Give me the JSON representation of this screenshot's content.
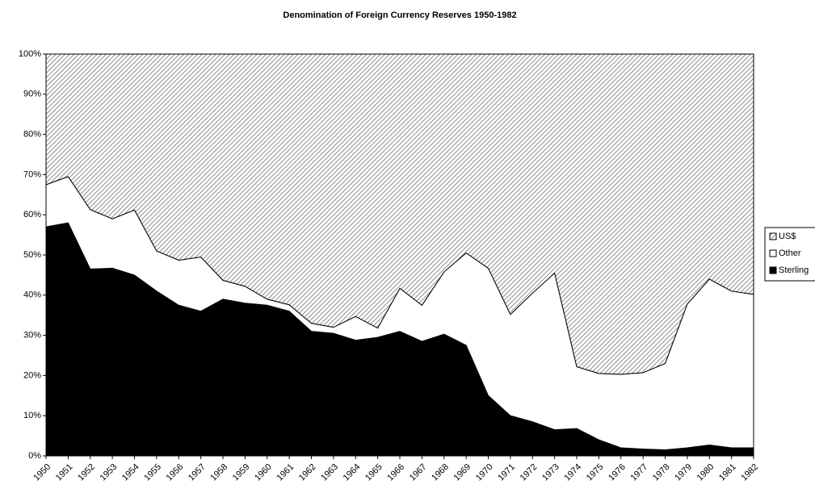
{
  "chart_data": {
    "type": "stacked_area",
    "title": "Denomination of Foreign Currency Reserves 1950-1982",
    "categories": [
      "1950",
      "1951",
      "1952",
      "1953",
      "1954",
      "1955",
      "1956",
      "1957",
      "1958",
      "1959",
      "1960",
      "1961",
      "1962",
      "1963",
      "1964",
      "1965",
      "1966",
      "1967",
      "1968",
      "1969",
      "1970",
      "1971",
      "1972",
      "1973",
      "1974",
      "1975",
      "1976",
      "1977",
      "1978",
      "1979",
      "1980",
      "1981",
      "1982"
    ],
    "series": [
      {
        "name": "Sterling",
        "color": "#000000",
        "values": [
          57,
          58,
          46.5,
          46.7,
          45,
          41,
          37.5,
          36,
          39,
          38,
          37.5,
          36,
          31,
          30.5,
          28.8,
          29.5,
          31,
          28.5,
          30.3,
          27.5,
          15,
          10,
          8.5,
          6.5,
          6.8,
          4,
          2,
          1.7,
          1.5,
          2,
          2.7,
          2,
          2
        ]
      },
      {
        "name": "Other",
        "color": "#ffffff",
        "values": [
          10.5,
          11.5,
          14.8,
          12.3,
          16.2,
          10,
          11.2,
          13.5,
          4.7,
          4.2,
          1.5,
          1.6,
          2,
          1.5,
          5.9,
          2.3,
          10.7,
          9,
          15.5,
          23,
          31.7,
          25.2,
          32,
          39,
          15.4,
          16.5,
          18.3,
          19,
          21.5,
          35.8,
          41.3,
          39,
          38.2
        ]
      },
      {
        "name": "US$",
        "color": "#8c8c8c",
        "values": [
          32.5,
          30.5,
          38.7,
          41,
          38.8,
          49,
          51.3,
          50.5,
          56.3,
          57.8,
          61,
          62.4,
          67,
          68,
          65.3,
          68.2,
          58.3,
          62.5,
          54.2,
          49.5,
          53.3,
          64.8,
          59.5,
          54.5,
          77.8,
          79.5,
          79.7,
          79.3,
          77,
          62.2,
          56,
          59,
          59.8
        ]
      }
    ],
    "ylim": [
      0,
      100
    ],
    "yticks": [
      {
        "value": 0,
        "label": "0%"
      },
      {
        "value": 10,
        "label": "10%"
      },
      {
        "value": 20,
        "label": "20%"
      },
      {
        "value": 30,
        "label": "30%"
      },
      {
        "value": 40,
        "label": "40%"
      },
      {
        "value": 50,
        "label": "50%"
      },
      {
        "value": 60,
        "label": "60%"
      },
      {
        "value": 70,
        "label": "70%"
      },
      {
        "value": 80,
        "label": "80%"
      },
      {
        "value": 90,
        "label": "90%"
      },
      {
        "value": 100,
        "label": "100%"
      }
    ],
    "legend": "right"
  }
}
